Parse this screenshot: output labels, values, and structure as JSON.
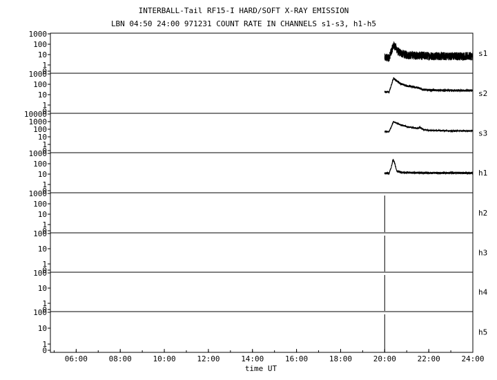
{
  "chart_data": {
    "type": "line",
    "title": "INTERBALL-Tail RF15-I HARD/SOFT X-RAY EMISSION",
    "subtitle": "LBN 04:50 24:00 971231  COUNT RATE IN CHANNELS s1-s3, h1-h5",
    "xlabel": "time UT",
    "x_ticks": [
      "06:00",
      "08:00",
      "10:00",
      "12:00",
      "14:00",
      "16:00",
      "18:00",
      "20:00",
      "22:00",
      "24:00"
    ],
    "xlim_hours": [
      4.83,
      24.0
    ],
    "y_scale": "log",
    "panels": [
      {
        "name": "s1",
        "yticks": [
          "1000",
          "100",
          "10",
          "1",
          "0"
        ],
        "start": 20.0,
        "series": [
          [
            20.0,
            5
          ],
          [
            20.2,
            5
          ],
          [
            20.3,
            20
          ],
          [
            20.4,
            80
          ],
          [
            20.48,
            60
          ],
          [
            20.6,
            20
          ],
          [
            20.8,
            12
          ],
          [
            21.0,
            9
          ],
          [
            21.5,
            8
          ],
          [
            22.0,
            7.5
          ],
          [
            22.5,
            7
          ],
          [
            23.0,
            7
          ],
          [
            23.5,
            7
          ],
          [
            24.0,
            7
          ]
        ]
      },
      {
        "name": "s2",
        "yticks": [
          "1000",
          "100",
          "10",
          "1",
          "0"
        ],
        "start": 20.0,
        "series": [
          [
            20.0,
            18
          ],
          [
            20.2,
            18
          ],
          [
            20.3,
            80
          ],
          [
            20.4,
            400
          ],
          [
            20.5,
            250
          ],
          [
            20.7,
            120
          ],
          [
            21.0,
            70
          ],
          [
            21.3,
            55
          ],
          [
            21.55,
            45
          ],
          [
            21.7,
            32
          ],
          [
            22.0,
            28
          ],
          [
            22.5,
            26
          ],
          [
            23.0,
            25
          ],
          [
            23.5,
            25
          ],
          [
            24.0,
            25
          ]
        ]
      },
      {
        "name": "s3",
        "yticks": [
          "10000",
          "1000",
          "100",
          "10",
          "1",
          "0"
        ],
        "start": 20.0,
        "series": [
          [
            20.0,
            50
          ],
          [
            20.2,
            50
          ],
          [
            20.3,
            200
          ],
          [
            20.4,
            1000
          ],
          [
            20.5,
            700
          ],
          [
            20.7,
            400
          ],
          [
            21.0,
            220
          ],
          [
            21.3,
            150
          ],
          [
            21.5,
            130
          ],
          [
            21.6,
            170
          ],
          [
            21.75,
            90
          ],
          [
            22.0,
            70
          ],
          [
            22.5,
            65
          ],
          [
            23.0,
            60
          ],
          [
            23.5,
            60
          ],
          [
            24.0,
            60
          ]
        ]
      },
      {
        "name": "h1",
        "yticks": [
          "1000",
          "100",
          "10",
          "1",
          "0"
        ],
        "start": 20.0,
        "series": [
          [
            20.0,
            12
          ],
          [
            20.2,
            12
          ],
          [
            20.3,
            50
          ],
          [
            20.38,
            250
          ],
          [
            20.45,
            120
          ],
          [
            20.55,
            20
          ],
          [
            20.8,
            14
          ],
          [
            21.0,
            14
          ],
          [
            22.0,
            13
          ],
          [
            23.0,
            13
          ],
          [
            24.0,
            13
          ]
        ]
      },
      {
        "name": "h2",
        "yticks": [
          "1000",
          "100",
          "10",
          "1",
          "0"
        ],
        "start": 20.0,
        "series": []
      },
      {
        "name": "h3",
        "yticks": [
          "100",
          "10",
          "1",
          "0"
        ],
        "start": 20.0,
        "series": []
      },
      {
        "name": "h4",
        "yticks": [
          "100",
          "10",
          "1",
          "0"
        ],
        "start": 20.0,
        "series": []
      },
      {
        "name": "h5",
        "yticks": [
          "100",
          "10",
          "1",
          "0"
        ],
        "start": 20.0,
        "series": []
      }
    ]
  }
}
